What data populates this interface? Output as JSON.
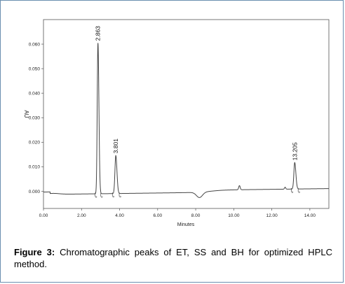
{
  "figure": {
    "caption_label": "Figure 3:",
    "caption_text": " Chromatographic peaks of ET, SS and BH for optimized HPLC method."
  },
  "chart_data": {
    "type": "line",
    "title": "",
    "xlabel": "Minutes",
    "ylabel": "AU",
    "xlim": [
      0,
      15
    ],
    "ylim": [
      -0.007,
      0.07
    ],
    "x_ticks": [
      0,
      2,
      4,
      6,
      8,
      10,
      12,
      14
    ],
    "x_tick_labels": [
      "0.00",
      "2.00",
      "4.00",
      "6.00",
      "8.00",
      "10.00",
      "12.00",
      "14.00"
    ],
    "y_ticks": [
      0.0,
      0.01,
      0.02,
      0.03,
      0.04,
      0.05,
      0.06
    ],
    "y_tick_labels": [
      "0.000",
      "0.010",
      "0.020",
      "0.030",
      "0.040",
      "0.050",
      "0.060"
    ],
    "grid": false,
    "peaks": [
      {
        "retention_time": 2.863,
        "label": "2.863",
        "height": 0.0615,
        "width": 0.05
      },
      {
        "retention_time": 3.801,
        "label": "3.801",
        "height": 0.0155,
        "width": 0.06
      },
      {
        "retention_time": 13.205,
        "label": "13.205",
        "height": 0.0108,
        "width": 0.06
      }
    ],
    "trace_color": "#444444"
  }
}
